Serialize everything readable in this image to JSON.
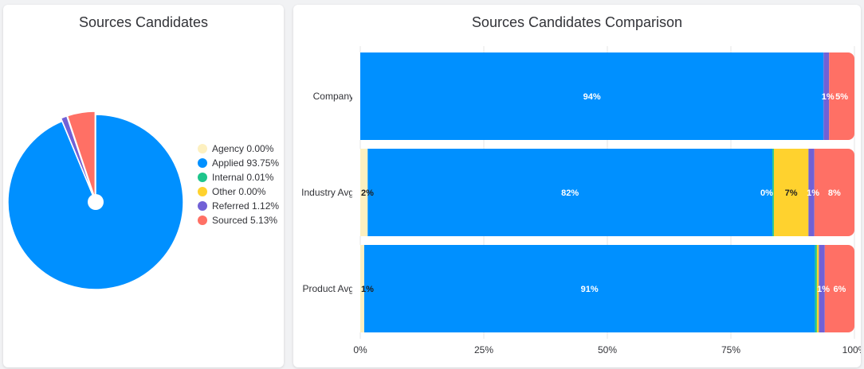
{
  "panels": {
    "pie_title": "Sources Candidates",
    "bar_title": "Sources Candidates Comparison"
  },
  "legend": [
    {
      "label": "Agency 0.00%",
      "color": "#fdf0c0"
    },
    {
      "label": "Applied 93.75%",
      "color": "#0090ff"
    },
    {
      "label": "Internal 0.01%",
      "color": "#1ec58b"
    },
    {
      "label": "Other 0.00%",
      "color": "#ffd22e"
    },
    {
      "label": "Referred 1.12%",
      "color": "#7161d6"
    },
    {
      "label": "Sourced 5.13%",
      "color": "#ff7065"
    }
  ],
  "chart_data": [
    {
      "type": "pie",
      "title": "Sources Candidates",
      "categories": [
        "Agency",
        "Applied",
        "Internal",
        "Other",
        "Referred",
        "Sourced"
      ],
      "values": [
        0.0,
        93.75,
        0.01,
        0.0,
        1.12,
        5.13
      ],
      "colors": [
        "#fdf0c0",
        "#0090ff",
        "#1ec58b",
        "#ffd22e",
        "#7161d6",
        "#ff7065"
      ],
      "legend_position": "right"
    },
    {
      "type": "bar",
      "orientation": "horizontal",
      "stacked": "percent",
      "title": "Sources Candidates Comparison",
      "categories": [
        "Company",
        "Industry Avg",
        "Product Avg"
      ],
      "xlim": [
        0,
        100
      ],
      "xticks": [
        "0%",
        "25%",
        "50%",
        "75%",
        "100%"
      ],
      "grid": true,
      "series": [
        {
          "name": "Agency",
          "color": "#fdf0c0",
          "values": [
            0,
            1.5,
            0.8
          ],
          "labels": [
            "",
            "2%",
            "1%"
          ]
        },
        {
          "name": "Applied",
          "color": "#0090ff",
          "values": [
            93.75,
            81.9,
            91.2
          ],
          "labels": [
            "94%",
            "82%",
            "91%"
          ]
        },
        {
          "name": "Internal",
          "color": "#1ec58b",
          "values": [
            0.01,
            0.3,
            0.4
          ],
          "labels": [
            "",
            "0%",
            ""
          ]
        },
        {
          "name": "Other",
          "color": "#ffd22e",
          "values": [
            0,
            7.0,
            0.4
          ],
          "labels": [
            "",
            "7%",
            ""
          ]
        },
        {
          "name": "Referred",
          "color": "#7161d6",
          "values": [
            1.12,
            1.2,
            1.2
          ],
          "labels": [
            "1%",
            "1%",
            "1%"
          ]
        },
        {
          "name": "Sourced",
          "color": "#ff7065",
          "values": [
            5.13,
            8.1,
            6.0
          ],
          "labels": [
            "5%",
            "8%",
            "6%"
          ]
        }
      ]
    }
  ]
}
